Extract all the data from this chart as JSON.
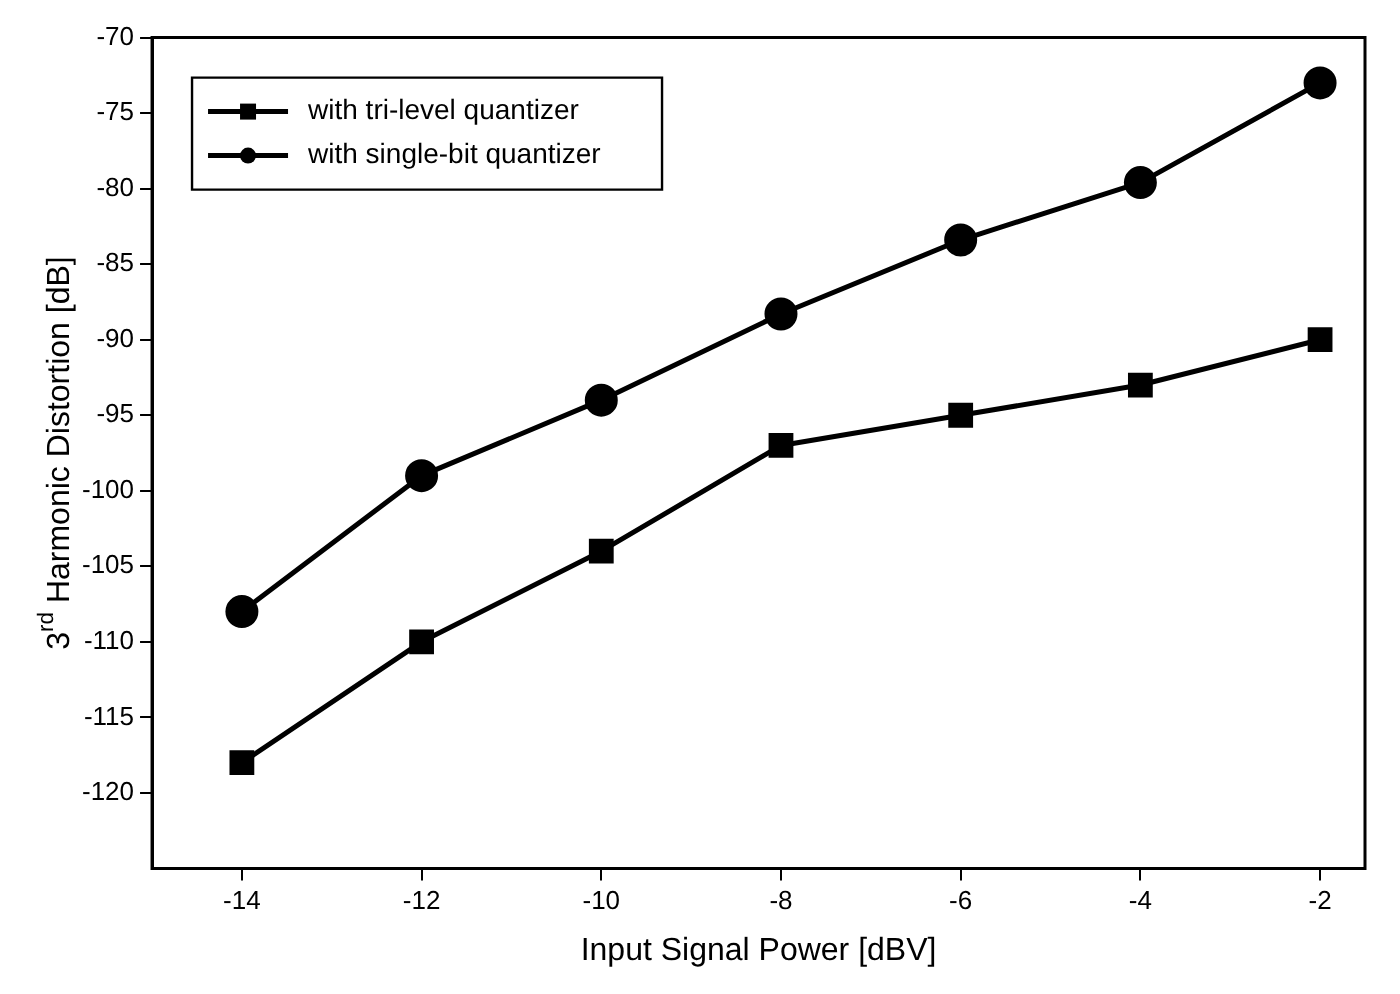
{
  "chart_data": {
    "type": "line",
    "xlabel": "Input Signal Power [dBV]",
    "ylabel": "3$^{rd}$ Harmonic Distortion [dB]",
    "x": [
      -14,
      -12,
      -10,
      -8,
      -6,
      -4,
      -2
    ],
    "series": [
      {
        "name": "with tri-level quantizer",
        "color": "#000000",
        "marker": "square",
        "values": [
          -118,
          -110,
          -104,
          -97,
          -95,
          -93,
          -90
        ]
      },
      {
        "name": "with single-bit quantizer",
        "color": "#000000",
        "marker": "circle",
        "values": [
          -108,
          -99,
          -94,
          -88.3,
          -83.4,
          -79.6,
          -73
        ]
      }
    ],
    "xlim": [
      -15,
      -1.5
    ],
    "xticks": [
      -14,
      -12,
      -10,
      -8,
      -6,
      -4,
      -2
    ],
    "ylim": [
      -125,
      -70
    ],
    "yticks": [
      -120,
      -115,
      -110,
      -105,
      -100,
      -95,
      -90,
      -85,
      -80,
      -75,
      -70
    ],
    "grid": false,
    "legend": "top left",
    "line_style": "solid"
  }
}
